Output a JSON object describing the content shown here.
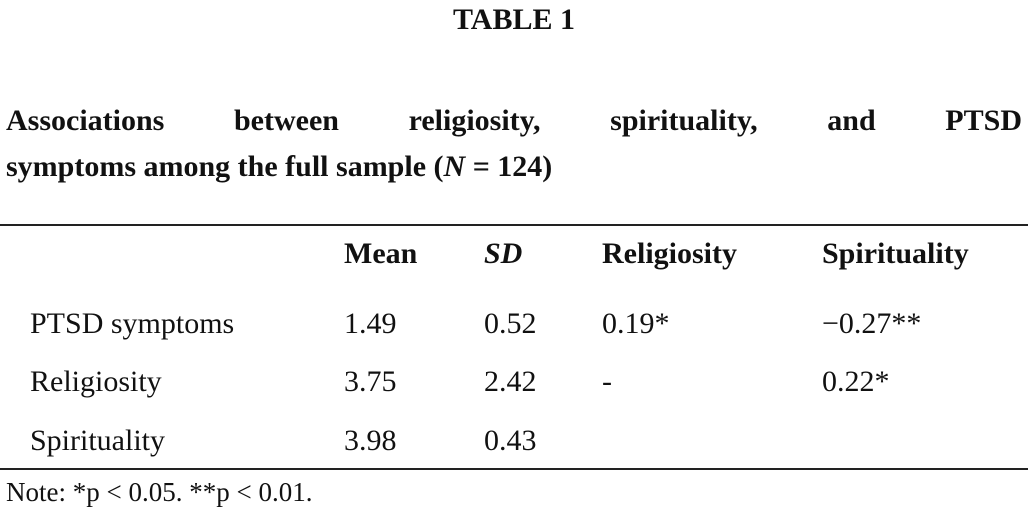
{
  "table_label": "TABLE 1",
  "caption": {
    "line1": "Associations between religiosity, spirituality, and PTSD",
    "line2_before": "symptoms among the full sample (",
    "line2_n": "N",
    "line2_after": " = 124)"
  },
  "columns": [
    "Mean",
    "SD",
    "Religiosity",
    "Spirituality"
  ],
  "rows": [
    {
      "label": "PTSD symptoms",
      "mean": "1.49",
      "sd": "0.52",
      "religiosity": "0.19*",
      "spirituality": "−0.27**"
    },
    {
      "label": "Religiosity",
      "mean": "3.75",
      "sd": "2.42",
      "religiosity": "-",
      "spirituality": "0.22*"
    },
    {
      "label": "Spirituality",
      "mean": "3.98",
      "sd": "0.43",
      "religiosity": "",
      "spirituality": ""
    }
  ],
  "note": "Note: *p < 0.05. **p < 0.01."
}
